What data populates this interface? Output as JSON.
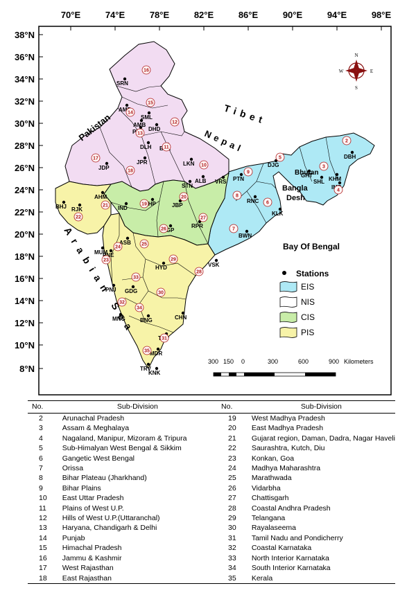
{
  "axes": {
    "longitude_ticks": [
      "70°E",
      "74°E",
      "78°E",
      "82°E",
      "86°E",
      "90°E",
      "94°E",
      "98°E"
    ],
    "latitude_ticks": [
      "38°N",
      "36°N",
      "34°N",
      "32°N",
      "30°N",
      "28°N",
      "26°N",
      "24°N",
      "22°N",
      "20°N",
      "18°N",
      "16°N",
      "14°N",
      "12°N",
      "10°N",
      "8°N"
    ]
  },
  "labels": {
    "pakistan": "Pakistan",
    "tibet": "Tibet",
    "nepal": "Nepal",
    "bhutan": "Bhutan",
    "bangla": "Bangla",
    "desh": "Desh",
    "arabian_sea": "Arabian Sea",
    "bay_of_bengal": "Bay Of Bengal"
  },
  "compass": {
    "n": "N",
    "s": "S",
    "e": "E",
    "w": "W"
  },
  "scale": {
    "ticks": [
      "300",
      "150",
      "0",
      "300",
      "600",
      "900"
    ],
    "unit": "Kilometers"
  },
  "legend": {
    "stations": "Stations",
    "eis": "EIS",
    "nis": "NIS",
    "cis": "CIS",
    "pis": "PIS"
  },
  "colors": {
    "eis": "#aee9f5",
    "nis": "#f2dcf2",
    "cis": "#c8eda8",
    "pis": "#f7f3a8",
    "number": "#b01c1c"
  },
  "stations": [
    "SRN",
    "AMR",
    "SML",
    "AMB",
    "DHD",
    "PTA",
    "DLH",
    "BRL",
    "JPR",
    "LKN",
    "JDP",
    "ALB",
    "VRS",
    "DJG",
    "PTN",
    "GHT",
    "DBH",
    "SHL",
    "KHM",
    "IMP",
    "RNC",
    "KLK",
    "STN",
    "AHM",
    "BHJ",
    "RJK",
    "IND",
    "BHP",
    "JBP",
    "NGP",
    "RPR",
    "BWN",
    "ASB",
    "MUM",
    "PNE",
    "HYD",
    "VSK",
    "PNJ",
    "GDG",
    "MNG",
    "BNG",
    "CHN",
    "TRP",
    "MDR",
    "TRV",
    "KNK"
  ],
  "subdivision_numbers": [
    "2",
    "3",
    "4",
    "5",
    "6",
    "7",
    "8",
    "9",
    "10",
    "11",
    "12",
    "13",
    "14",
    "15",
    "16",
    "17",
    "18",
    "19",
    "20",
    "21",
    "22",
    "23",
    "24",
    "25",
    "26",
    "27",
    "28",
    "29",
    "30",
    "31",
    "32",
    "33",
    "34",
    "35"
  ],
  "table": {
    "headers": [
      "No.",
      "Sub-Division",
      "No.",
      "Sub-Division"
    ],
    "rows": [
      {
        "n1": "2",
        "s1": "Arunachal Pradesh",
        "n2": "19",
        "s2": "West Madhya Pradesh"
      },
      {
        "n1": "3",
        "s1": "Assam & Meghalaya",
        "n2": "20",
        "s2": "East Madhya Pradesh"
      },
      {
        "n1": "4",
        "s1": "Nagaland, Manipur, Mizoram & Tripura",
        "n2": "21",
        "s2": "Gujarat region, Daman, Dadra, Nagar Haveli"
      },
      {
        "n1": "5",
        "s1": "Sub-Himalyan West Bengal & Sikkim",
        "n2": "22",
        "s2": "Saurashtra, Kutch, Diu"
      },
      {
        "n1": "6",
        "s1": "Gangetic West Bengal",
        "n2": "23",
        "s2": "Konkan, Goa"
      },
      {
        "n1": "7",
        "s1": "Orissa",
        "n2": "24",
        "s2": "Madhya Maharashtra"
      },
      {
        "n1": "8",
        "s1": "Bihar Plateau (Jharkhand)",
        "n2": "25",
        "s2": "Marathwada"
      },
      {
        "n1": "9",
        "s1": "Bihar Plains",
        "n2": "26",
        "s2": "Vidarbha"
      },
      {
        "n1": "10",
        "s1": "East Uttar Pradesh",
        "n2": "27",
        "s2": "Chattisgarh"
      },
      {
        "n1": "11",
        "s1": "Plains of West U.P.",
        "n2": "28",
        "s2": "Coastal Andhra Pradesh"
      },
      {
        "n1": "12",
        "s1": "Hills of West U.P.(Uttaranchal)",
        "n2": "29",
        "s2": "Telangana"
      },
      {
        "n1": "13",
        "s1": "Haryana, Chandigarh & Delhi",
        "n2": "30",
        "s2": "Rayalaseema"
      },
      {
        "n1": "14",
        "s1": "Punjab",
        "n2": "31",
        "s2": "Tamil Nadu and Pondicherry"
      },
      {
        "n1": "15",
        "s1": "Himachal Pradesh",
        "n2": "32",
        "s2": "Coastal Karnataka"
      },
      {
        "n1": "16",
        "s1": "Jammu & Kashmir",
        "n2": "33",
        "s2": "North Interior Karnataka"
      },
      {
        "n1": "17",
        "s1": "West Rajasthan",
        "n2": "34",
        "s2": "South Interior Karnataka"
      },
      {
        "n1": "18",
        "s1": "East Rajasthan",
        "n2": "35",
        "s2": "Kerala"
      }
    ]
  }
}
